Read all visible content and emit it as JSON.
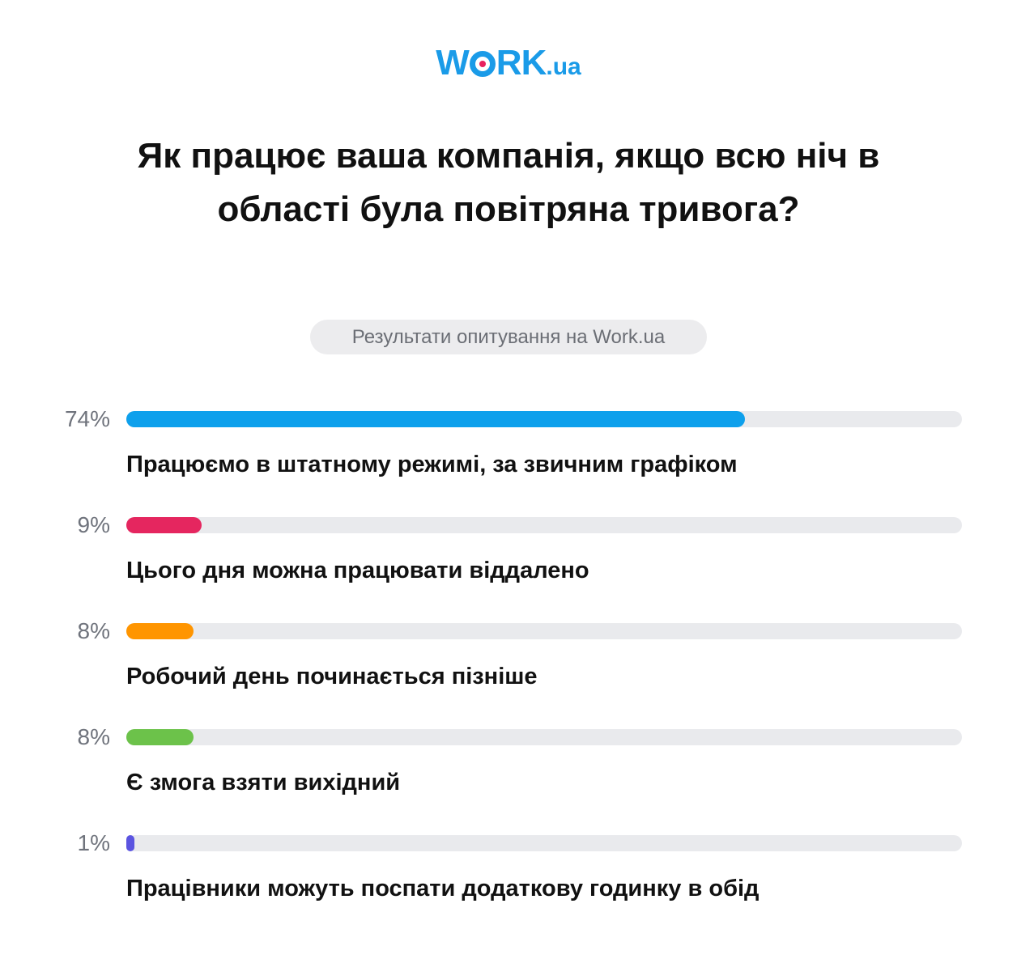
{
  "brand": {
    "logo_left": "W",
    "logo_right": "RK",
    "logo_tld": ".ua",
    "colors": {
      "logo": "#1a9be8",
      "logo_dot": "#e8215f"
    }
  },
  "title": "Як працює ваша компанія, якщо всю ніч в області була повітряна тривога?",
  "subtitle": "Результати опитування на Work.ua",
  "chart_data": {
    "type": "bar",
    "orientation": "horizontal",
    "title": "Як працює ваша компанія, якщо всю ніч в області була повітряна тривога?",
    "subtitle": "Результати опитування на Work.ua",
    "xlim": [
      0,
      100
    ],
    "unit": "%",
    "grid": false,
    "legend": "none",
    "categories": [
      "Працюємо в штатному режимі, за звичним графіком",
      "Цього дня можна працювати віддалено",
      "Робочий день починається пізніше",
      "Є змога взяти вихідний",
      "Працівники можуть поспати додаткову годинку в обід"
    ],
    "values": [
      74,
      9,
      8,
      8,
      1
    ],
    "value_labels": [
      "74%",
      "9%",
      "8%",
      "8%",
      "1%"
    ],
    "colors": [
      "#0ea0ec",
      "#e5265f",
      "#ff9500",
      "#6cc24a",
      "#5b54e0"
    ],
    "track_color": "#e9eaed"
  }
}
